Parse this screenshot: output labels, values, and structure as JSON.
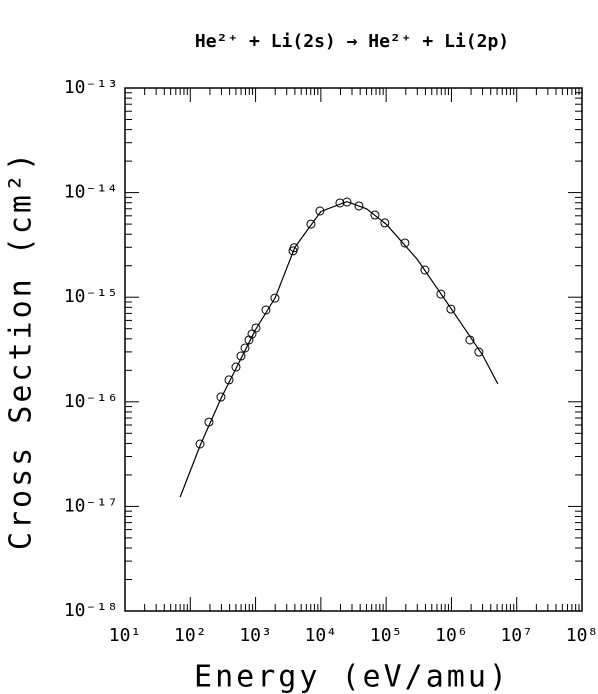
{
  "chart_data": {
    "type": "scatter",
    "title": "He²⁺ + Li(2s) → He²⁺ + Li(2p)",
    "x_label": "Energy (eV/amu)",
    "y_label": "Cross Section (cm²)",
    "log_x": true,
    "log_y": true,
    "xlim": [
      10,
      100000000
    ],
    "ylim": [
      1e-18,
      1e-13
    ],
    "xticks": [
      {
        "value": 10,
        "label": "10¹"
      },
      {
        "value": 100,
        "label": "10²"
      },
      {
        "value": 1000,
        "label": "10³"
      },
      {
        "value": 10000,
        "label": "10⁴"
      },
      {
        "value": 100000,
        "label": "10⁵"
      },
      {
        "value": 1000000,
        "label": "10⁶"
      },
      {
        "value": 10000000,
        "label": "10⁷"
      },
      {
        "value": 100000000,
        "label": "10⁸"
      }
    ],
    "yticks": [
      {
        "value": 1e-18,
        "label": "10⁻¹⁸"
      },
      {
        "value": 1e-17,
        "label": "10⁻¹⁷"
      },
      {
        "value": 1e-16,
        "label": "10⁻¹⁶"
      },
      {
        "value": 1e-15,
        "label": "10⁻¹⁵"
      },
      {
        "value": 1e-14,
        "label": "10⁻¹⁴"
      },
      {
        "value": 1e-13,
        "label": "10⁻¹³"
      }
    ],
    "series": [
      {
        "type": "scatter",
        "color": "#000000",
        "x": [
          141,
          193,
          295,
          392,
          501,
          598,
          689,
          793,
          881,
          1014,
          1443,
          1980,
          3740,
          3900,
          7050,
          9680,
          19600,
          25100,
          38300,
          67400,
          95600,
          194000,
          393000,
          690000,
          982000,
          1920000,
          2630000
        ],
        "values": [
          3.95e-17,
          6.4e-17,
          1.11e-16,
          1.62e-16,
          2.15e-16,
          2.74e-16,
          3.27e-16,
          3.9e-16,
          4.45e-16,
          5.08e-16,
          7.55e-16,
          9.8e-16,
          2.77e-15,
          2.97e-15,
          5e-15,
          6.67e-15,
          7.96e-15,
          8.13e-15,
          7.45e-15,
          6.1e-15,
          5.13e-15,
          3.3e-15,
          1.82e-15,
          1.07e-15,
          7.7e-16,
          3.9e-16,
          2.99e-16
        ]
      },
      {
        "type": "line",
        "color": "#000000",
        "x": [
          70,
          141,
          300,
          1000,
          2000,
          4000,
          10000,
          25000,
          50000,
          100000,
          300000,
          1000000,
          3000000,
          5150000
        ],
        "values": [
          1.23e-17,
          3.8e-17,
          1.1e-16,
          4.9e-16,
          9.9e-16,
          3e-15,
          6.6e-15,
          8.2e-15,
          7e-15,
          5e-15,
          2.3e-15,
          7.7e-16,
          2.8e-16,
          1.48e-16
        ]
      }
    ]
  }
}
